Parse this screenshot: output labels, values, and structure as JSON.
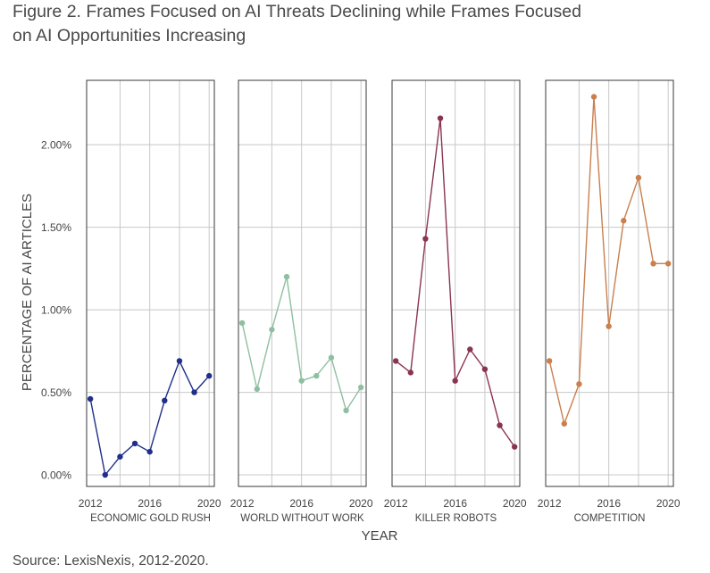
{
  "figure": {
    "title_line1": "Figure 2. Frames Focused on AI Threats Declining while Frames Focused",
    "title_line2": "on AI Opportunities Increasing",
    "source": "Source: LexisNexis, 2012-2020."
  },
  "chart_data": {
    "type": "line",
    "ylabel": "PERCENTAGE OF AI ARTICLES",
    "xlabel": "YEAR",
    "ylim": [
      -0.0007,
      0.0239
    ],
    "xlim": [
      2011.75,
      2020.35
    ],
    "y_ticks": [
      0.0,
      0.005,
      0.01,
      0.015,
      0.02
    ],
    "y_tick_labels": [
      "0.00%",
      "0.50%",
      "1.00%",
      "1.50%",
      "2.00%"
    ],
    "x_ticks": [
      2012,
      2016,
      2020
    ],
    "x_tick_labels": [
      "2012",
      "2016",
      "2020"
    ],
    "x_gridlines": [
      2014,
      2016,
      2018,
      2020
    ],
    "grid": true,
    "x": [
      2012,
      2013,
      2014,
      2015,
      2016,
      2017,
      2018,
      2019,
      2020
    ],
    "series": [
      {
        "name": "ECONOMIC GOLD RUSH",
        "color": "#1f2f8a",
        "values": [
          0.0046,
          0.0,
          0.0011,
          0.0019,
          0.0014,
          0.0045,
          0.0069,
          0.005,
          0.006
        ]
      },
      {
        "name": "WORLD WITHOUT WORK",
        "color": "#8fbfa2",
        "values": [
          0.0092,
          0.0052,
          0.0088,
          0.012,
          0.0057,
          0.006,
          0.0071,
          0.0039,
          0.0053
        ]
      },
      {
        "name": "KILLER ROBOTS",
        "color": "#8a3451",
        "values": [
          0.0069,
          0.0062,
          0.0143,
          0.0216,
          0.0057,
          0.0076,
          0.0064,
          0.003,
          0.0017
        ]
      },
      {
        "name": "COMPETITION",
        "color": "#c97f4e",
        "values": [
          0.0069,
          0.0031,
          0.0055,
          0.0229,
          0.009,
          0.0154,
          0.018,
          0.0128,
          0.0128
        ]
      }
    ]
  }
}
